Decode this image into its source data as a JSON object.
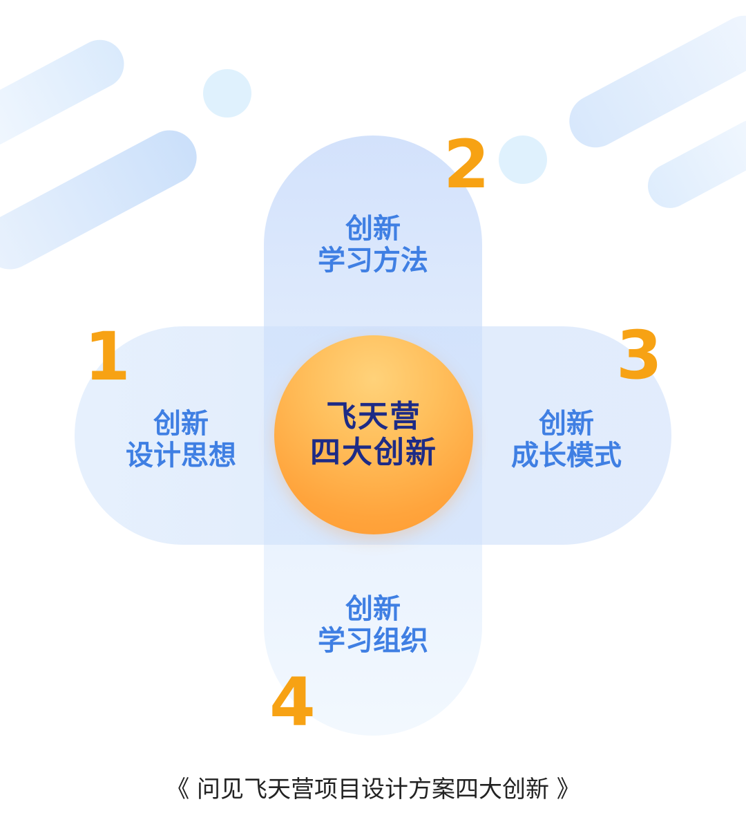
{
  "colors": {
    "number_orange": "#f7a214",
    "label_blue": "#3f7fe3",
    "center_text_navy": "#1d2b86",
    "center_circle_orange": "#ffa43c",
    "pill_blue": "#cfe0fb"
  },
  "center": {
    "line1": "飞天营",
    "line2": "四大创新"
  },
  "items": [
    {
      "number": "1",
      "line1": "创新",
      "line2": "设计思想"
    },
    {
      "number": "2",
      "line1": "创新",
      "line2": "学习方法"
    },
    {
      "number": "3",
      "line1": "创新",
      "line2": "成长模式"
    },
    {
      "number": "4",
      "line1": "创新",
      "line2": "学习组织"
    }
  ],
  "caption": "《 问见飞天营项目设计方案四大创新 》"
}
